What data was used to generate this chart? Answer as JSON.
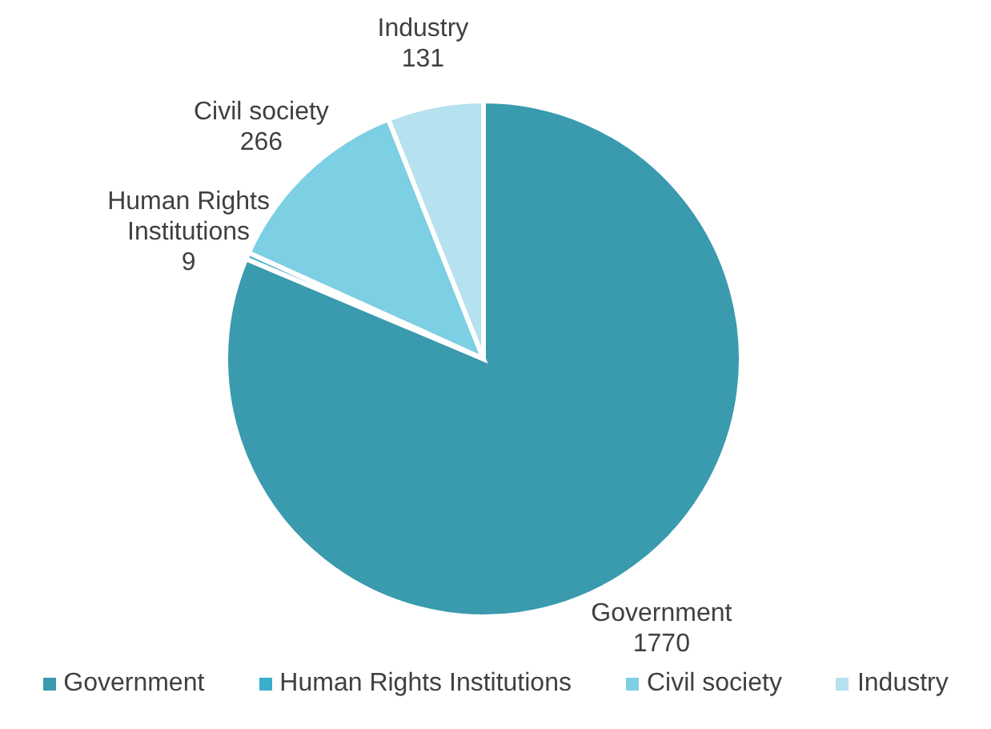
{
  "chart_data": {
    "type": "pie",
    "categories": [
      "Government",
      "Human Rights Institutions",
      "Civil society",
      "Industry"
    ],
    "values": [
      1770,
      9,
      266,
      131
    ],
    "colors": [
      "#3a9aae",
      "#3aaecb",
      "#7dcfe3",
      "#b6e1ee"
    ],
    "data_labels": true,
    "legend": "bottom"
  }
}
